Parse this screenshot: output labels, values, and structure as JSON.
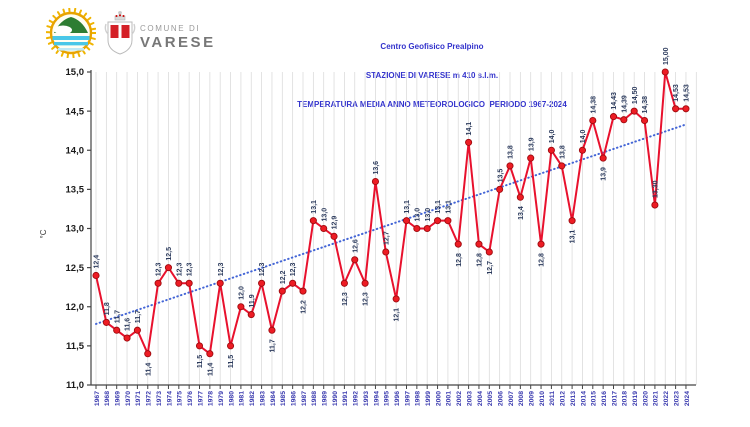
{
  "header": {
    "org_line1": "COMUNE DI",
    "org_line2": "VARESE",
    "logos": [
      "centro-geofisico-prealpino-emblem",
      "varese-coat-of-arms"
    ]
  },
  "title": {
    "line1": "Centro Geofisico Prealpino",
    "line2": "STAZIONE DI VARESE m 410 s.l.m.",
    "line3": "TEMPERATURA MEDIA ANNO METEOROLOGICO  PERIODO 1967-2024"
  },
  "chart_data": {
    "type": "line",
    "ylabel": "°C",
    "ylim": [
      11.0,
      15.0
    ],
    "ytick_step": 0.5,
    "ytick_labels": [
      "11,0",
      "11,5",
      "12,0",
      "12,5",
      "13,0",
      "13,5",
      "14,0",
      "14,5",
      "15,0"
    ],
    "grid": "vertical-per-year",
    "legend": "none",
    "x": [
      1967,
      1968,
      1969,
      1970,
      1971,
      1972,
      1973,
      1974,
      1975,
      1976,
      1977,
      1978,
      1979,
      1980,
      1981,
      1982,
      1983,
      1984,
      1985,
      1986,
      1987,
      1988,
      1989,
      1990,
      1991,
      1992,
      1993,
      1994,
      1995,
      1996,
      1997,
      1998,
      1999,
      2000,
      2001,
      2002,
      2003,
      2004,
      2005,
      2006,
      2007,
      2008,
      2009,
      2010,
      2011,
      2012,
      2013,
      2014,
      2015,
      2016,
      2017,
      2018,
      2019,
      2020,
      2021,
      2022,
      2023,
      2024
    ],
    "values": [
      12.4,
      11.8,
      11.7,
      11.6,
      11.7,
      11.4,
      12.3,
      12.5,
      12.3,
      12.3,
      11.5,
      11.4,
      12.3,
      11.5,
      12.0,
      11.9,
      12.3,
      11.7,
      12.2,
      12.3,
      12.2,
      13.1,
      13.0,
      12.9,
      12.3,
      12.6,
      12.3,
      13.6,
      12.7,
      12.1,
      13.1,
      13.0,
      13.0,
      13.1,
      13.1,
      12.8,
      14.1,
      12.8,
      12.7,
      13.5,
      13.8,
      13.4,
      13.9,
      12.8,
      14.0,
      13.8,
      13.1,
      14.0,
      14.38,
      13.9,
      14.43,
      14.39,
      14.5,
      14.38,
      13.3,
      15.0,
      14.53,
      14.53
    ],
    "point_labels": [
      "12,4",
      "11,8",
      "11,7",
      "11,6",
      "11,7",
      "11,4",
      "12,3",
      "12,5",
      "12,3",
      "12,3",
      "11,5",
      "11,4",
      "12,3",
      "11,5",
      "12,0",
      "11,9",
      "12,3",
      "11,7",
      "12,2",
      "12,3",
      "12,2",
      "13,1",
      "13,0",
      "12,9",
      "12,3",
      "12,6",
      "12,3",
      "13,6",
      "12,7",
      "12,1",
      "13,1",
      "13,0",
      "13,0",
      "13,1",
      "13,1",
      "12,8",
      "14,1",
      "12,8",
      "12,7",
      "13,5",
      "13,8",
      "13,4",
      "13,9",
      "12,8",
      "14,0",
      "13,8",
      "13,1",
      "14,0",
      "14,38",
      "13,9",
      "14,43",
      "14,39",
      "14,50",
      "14,38",
      "13,30",
      "15,00",
      "14,53",
      "14,53"
    ],
    "labels_below_years": [
      1972,
      1977,
      1978,
      1980,
      1984,
      1987,
      1991,
      1993,
      1996,
      2002,
      2004,
      2005,
      2008,
      2010,
      2013,
      2016
    ],
    "trend": {
      "type": "linear-dotted",
      "value_1967": 11.78,
      "value_2024": 14.33
    },
    "colors": {
      "series_line": "#e8112d",
      "marker_fill": "#ed1c24",
      "marker_stroke": "#9e0b0f",
      "trend_line": "#4365d6",
      "gridline": "#dcdcdc",
      "axis": "#444444",
      "value_label": "#2b3a5c",
      "year_label": "#3939ae",
      "ytick_label": "#1a1a1a",
      "title_text": "#3333cc"
    }
  }
}
